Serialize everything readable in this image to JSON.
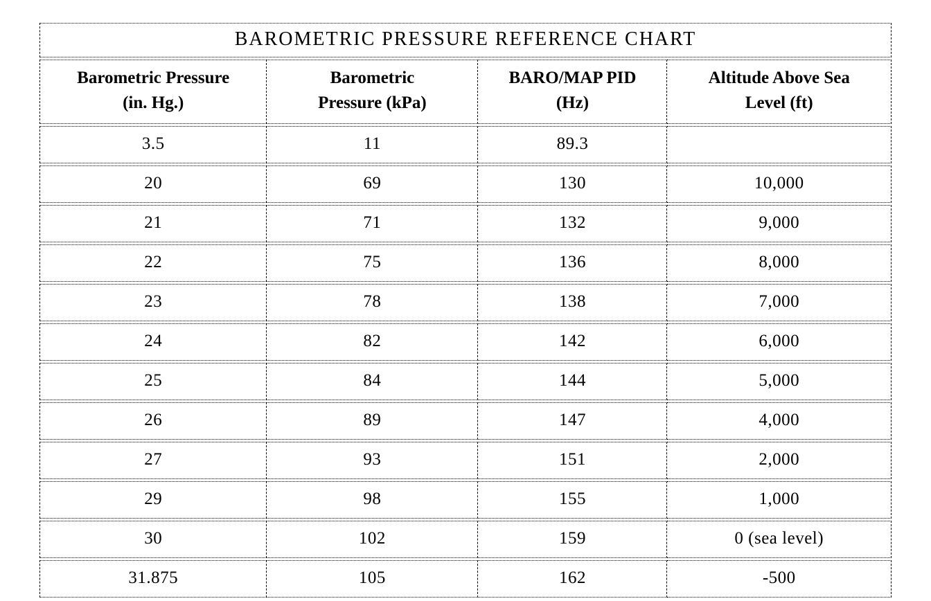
{
  "page": {
    "background_color": "#ffffff",
    "ink_color": "#000000"
  },
  "table": {
    "title": "BAROMETRIC PRESSURE REFERENCE CHART",
    "headers": [
      {
        "line1": "Barometric Pressure",
        "line2": "(in. Hg.)"
      },
      {
        "line1": "Barometric",
        "line2": "Pressure (kPa)"
      },
      {
        "line1": "BARO/MAP PID",
        "line2": "(Hz)"
      },
      {
        "line1": "Altitude Above Sea",
        "line2": "Level (ft)"
      }
    ],
    "rows": [
      [
        "3.5",
        "11",
        "89.3",
        ""
      ],
      [
        "20",
        "69",
        "130",
        "10,000"
      ],
      [
        "21",
        "71",
        "132",
        "9,000"
      ],
      [
        "22",
        "75",
        "136",
        "8,000"
      ],
      [
        "23",
        "78",
        "138",
        "7,000"
      ],
      [
        "24",
        "82",
        "142",
        "6,000"
      ],
      [
        "25",
        "84",
        "144",
        "5,000"
      ],
      [
        "26",
        "89",
        "147",
        "4,000"
      ],
      [
        "27",
        "93",
        "151",
        "2,000"
      ],
      [
        "29",
        "98",
        "155",
        "1,000"
      ],
      [
        "30",
        "102",
        "159",
        "0 (sea level)"
      ],
      [
        "31.875",
        "105",
        "162",
        "-500"
      ]
    ]
  }
}
